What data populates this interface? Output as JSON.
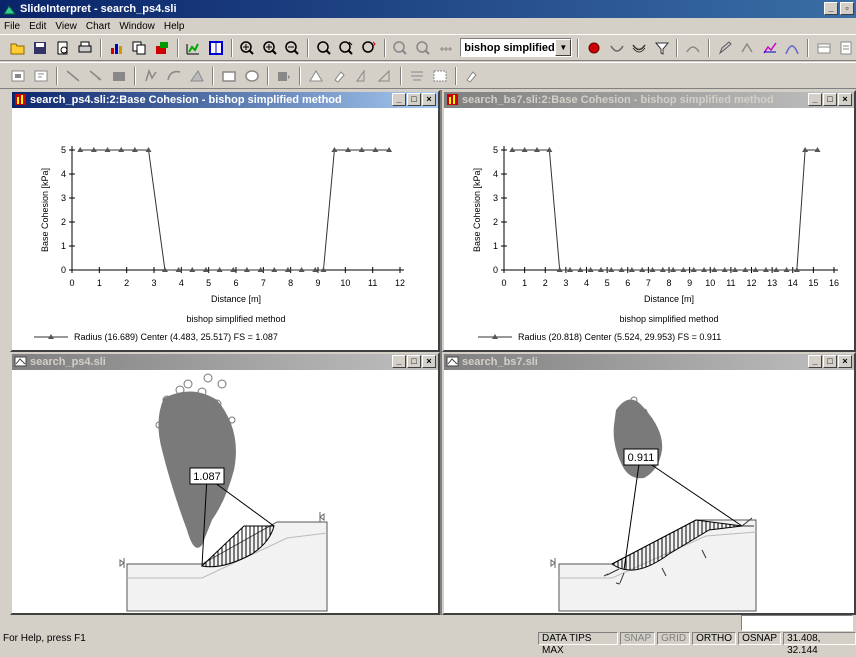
{
  "app": {
    "title": "SlideInterpret - search_ps4.sli"
  },
  "menu": [
    "File",
    "Edit",
    "View",
    "Chart",
    "Window",
    "Help"
  ],
  "toolbar": {
    "method_combo": "bishop simplified"
  },
  "windows": [
    {
      "id": "chart-ps4",
      "title": "search_ps4.sli:2:Base Cohesion - bishop simplified method",
      "active": true
    },
    {
      "id": "chart-bs7",
      "title": "search_bs7.sli:2:Base Cohesion - bishop simplified method",
      "active": false
    },
    {
      "id": "model-ps4",
      "title": "search_ps4.sli",
      "active": false
    },
    {
      "id": "model-bs7",
      "title": "search_bs7.sli",
      "active": false
    }
  ],
  "chart_data": [
    {
      "type": "line",
      "xlabel": "Distance [m]",
      "ylabel": "Base Cohesion [kPa]",
      "xlim": [
        0,
        12
      ],
      "ylim": [
        0,
        5
      ],
      "xticks": [
        0,
        1,
        2,
        3,
        4,
        5,
        6,
        7,
        8,
        9,
        10,
        11,
        12
      ],
      "yticks": [
        0,
        1,
        2,
        3,
        4,
        5
      ],
      "legend_title": "bishop simplified method",
      "series": [
        {
          "name": "Radius (16.689)  Center (4.483, 25.517)  FS = 1.087",
          "x": [
            0.3,
            0.8,
            1.3,
            1.8,
            2.3,
            2.8,
            3.4,
            3.9,
            4.4,
            4.9,
            5.4,
            5.9,
            6.4,
            6.9,
            7.4,
            7.9,
            8.4,
            8.9,
            9.2,
            9.6,
            10.1,
            10.6,
            11.1,
            11.6
          ],
          "y": [
            5,
            5,
            5,
            5,
            5,
            5,
            0,
            0,
            0,
            0,
            0,
            0,
            0,
            0,
            0,
            0,
            0,
            0,
            0,
            5,
            5,
            5,
            5,
            5
          ]
        }
      ]
    },
    {
      "type": "line",
      "xlabel": "Distance [m]",
      "ylabel": "Base Cohesion [kPa]",
      "xlim": [
        0,
        16
      ],
      "ylim": [
        0,
        5
      ],
      "xticks": [
        0,
        1,
        2,
        3,
        4,
        5,
        6,
        7,
        8,
        9,
        10,
        11,
        12,
        13,
        14,
        15,
        16
      ],
      "yticks": [
        0,
        1,
        2,
        3,
        4,
        5
      ],
      "legend_title": "bishop simplified method",
      "series": [
        {
          "name": "Radius (20.818)  Center (5.524, 29.953)  FS = 0.911",
          "x": [
            0.4,
            1,
            1.6,
            2.2,
            2.7,
            3.2,
            3.7,
            4.2,
            4.7,
            5.2,
            5.7,
            6.2,
            6.7,
            7.2,
            7.7,
            8.2,
            8.7,
            9.2,
            9.7,
            10.2,
            10.7,
            11.2,
            11.7,
            12.2,
            12.7,
            13.2,
            13.7,
            14.2,
            14.6,
            15.2
          ],
          "y": [
            5,
            5,
            5,
            5,
            0,
            0,
            0,
            0,
            0,
            0,
            0,
            0,
            0,
            0,
            0,
            0,
            0,
            0,
            0,
            0,
            0,
            0,
            0,
            0,
            0,
            0,
            0,
            0,
            5,
            5
          ]
        }
      ]
    }
  ],
  "models": {
    "ps4": {
      "fs_label": "1.087"
    },
    "bs7": {
      "fs_label": "0.911"
    }
  },
  "status": {
    "help": "For Help, press F1",
    "panels": [
      {
        "text": "DATA TIPS MAX",
        "on": true
      },
      {
        "text": "SNAP",
        "on": false
      },
      {
        "text": "GRID",
        "on": false
      },
      {
        "text": "ORTHO",
        "on": true
      },
      {
        "text": "OSNAP",
        "on": true
      },
      {
        "text": "31.408, 32.144",
        "on": true
      }
    ]
  }
}
